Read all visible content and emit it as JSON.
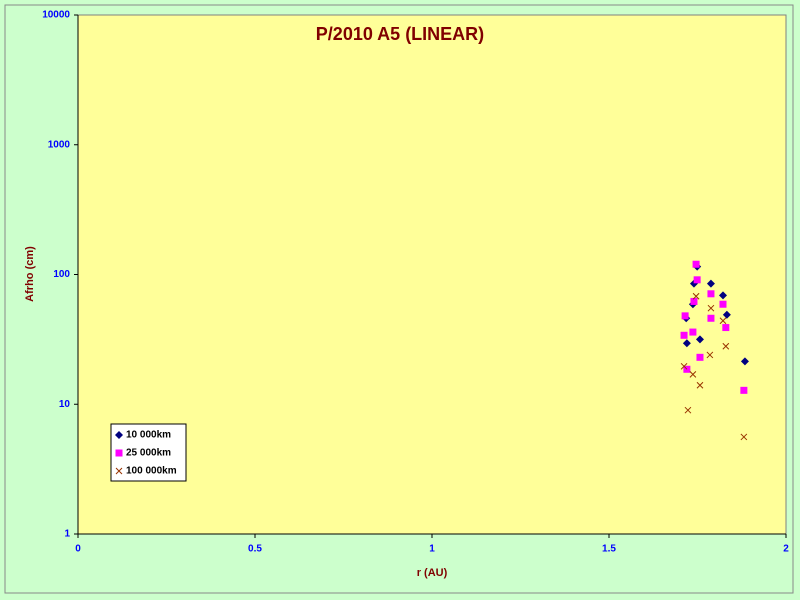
{
  "chart_data": {
    "type": "scatter",
    "title": "P/2010 A5 (LINEAR)",
    "x_label": "r (AU)",
    "y_label": "Afrho (cm)",
    "xlim": [
      0,
      2
    ],
    "xticks": [
      0,
      0.5,
      1,
      1.5,
      2
    ],
    "ylim": [
      1,
      10000
    ],
    "yticks": [
      1,
      10,
      100,
      1000,
      10000
    ],
    "y_log": true,
    "legend_position": "lower left",
    "series": [
      {
        "name": "10 000km",
        "color": "#000080",
        "marker": "diamond",
        "x": [
          1.718,
          1.72,
          1.737,
          1.74,
          1.749,
          1.757,
          1.788,
          1.822,
          1.833,
          1.884
        ],
        "values": [
          46,
          29.5,
          59,
          85,
          115,
          31.6,
          85,
          69,
          49,
          21.4
        ]
      },
      {
        "name": "25 000km",
        "color": "#ff00ff",
        "marker": "square",
        "x": [
          1.712,
          1.715,
          1.72,
          1.737,
          1.74,
          1.746,
          1.749,
          1.757,
          1.788,
          1.788,
          1.822,
          1.83,
          1.881
        ],
        "values": [
          34,
          48,
          18.6,
          36,
          62,
          120,
          91,
          23,
          46,
          71,
          59,
          39,
          12.8
        ]
      },
      {
        "name": "100 000km",
        "color": "#993300",
        "marker": "x",
        "x": [
          1.712,
          1.723,
          1.737,
          1.746,
          1.757,
          1.785,
          1.788,
          1.822,
          1.83,
          1.881
        ],
        "values": [
          19.6,
          9,
          17,
          68,
          14,
          24,
          55,
          44,
          28,
          5.6
        ]
      }
    ]
  }
}
